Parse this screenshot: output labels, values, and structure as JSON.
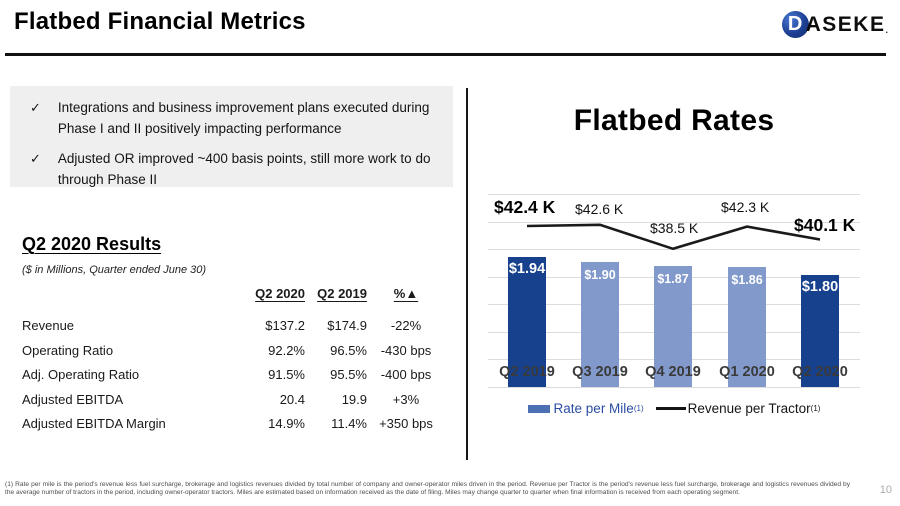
{
  "header": {
    "title": "Flatbed Financial Metrics",
    "logo_d": "D",
    "logo_text": "ASEKE",
    "logo_reg": "."
  },
  "bullets": {
    "check": "✓",
    "items": [
      {
        "text": "Integrations and business improvement plans executed during Phase I and II positively impacting performance"
      },
      {
        "text": "Adjusted OR improved ~400 basis points, still more work to do through Phase II"
      }
    ]
  },
  "results": {
    "heading": "Q2 2020 Results",
    "subheading": "($ in Millions, Quarter ended June 30)",
    "columns": {
      "c1": "Q2 2020",
      "c2": "Q2 2019",
      "c3": "%▲"
    },
    "rows": [
      {
        "label": "Revenue",
        "q2_2020": "$137.2",
        "q2_2019": "$174.9",
        "change": "-22%"
      },
      {
        "label": "Operating Ratio",
        "q2_2020": "92.2%",
        "q2_2019": "96.5%",
        "change": "-430 bps"
      },
      {
        "label": "Adj. Operating Ratio",
        "q2_2020": "91.5%",
        "q2_2019": "95.5%",
        "change": "-400 bps"
      },
      {
        "label": "Adjusted EBITDA",
        "q2_2020": "20.4",
        "q2_2019": "19.9",
        "change": "+3%"
      },
      {
        "label": "Adjusted EBITDA Margin",
        "q2_2020": "14.9%",
        "q2_2019": "11.4%",
        "change": "+350 bps"
      }
    ]
  },
  "chart_data": {
    "type": "combo",
    "title": "Flatbed Rates",
    "categories": [
      "Q2 2019",
      "Q3 2019",
      "Q4 2019",
      "Q1 2020",
      "Q2 2020"
    ],
    "series": [
      {
        "name": "Rate per Mile",
        "type": "bar",
        "values": [
          1.94,
          1.9,
          1.87,
          1.86,
          1.8
        ],
        "labels": [
          "$1.94",
          "$1.90",
          "$1.87",
          "$1.86",
          "$1.80"
        ],
        "emphasis": [
          true,
          false,
          false,
          false,
          true
        ]
      },
      {
        "name": "Revenue per Tractor",
        "type": "line",
        "values": [
          42.4,
          42.6,
          38.5,
          42.3,
          40.1
        ],
        "labels": [
          "$42.4 K",
          "$42.6 K",
          "$38.5 K",
          "$42.3 K",
          "$40.1 K"
        ],
        "emphasis": [
          true,
          false,
          false,
          false,
          true
        ]
      }
    ],
    "colors": {
      "bar_emphasis": "#17418d",
      "bar_normal": "#8299cc",
      "line": "#1a1a1a",
      "gridline": "#dcdcdc"
    },
    "grid": true,
    "legend_position": "bottom"
  },
  "legend": {
    "bar_label": "Rate per Mile",
    "line_label": "Revenue per Tractor",
    "superscript": "(1)"
  },
  "footer": {
    "footnote": "(1) Rate per mile is the period's revenue less fuel surcharge, brokerage and logistics revenues divided by total number of company and owner-operator miles driven in the period. Revenue per Tractor is the period's revenue less fuel surcharge, brokerage and logistics revenues divided by the average number of tractors in the period, including owner-operator tractors. Miles are estimated based on information received as the date of filing. Miles may change quarter to quarter when final information is received from each operating segment.",
    "page_number": "10"
  }
}
